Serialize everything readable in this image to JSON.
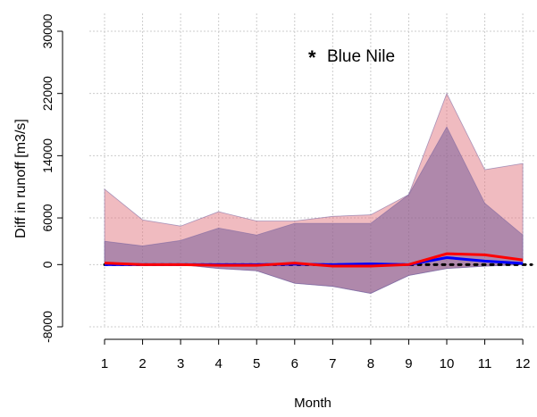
{
  "chart_data": {
    "type": "band-line",
    "xlabel": "Month",
    "ylabel": "Diff in runoff [m3/s]",
    "annotation": {
      "marker": "*",
      "text": "Blue Nile",
      "marker_color": "#e8202a"
    },
    "x": [
      1,
      2,
      3,
      4,
      5,
      6,
      7,
      8,
      9,
      10,
      11,
      12
    ],
    "xlim": [
      0.6,
      12.35
    ],
    "xticks": [
      1,
      2,
      3,
      4,
      5,
      6,
      7,
      8,
      9,
      10,
      11,
      12
    ],
    "ylim": [
      -8000,
      30000
    ],
    "yticks": [
      -8000,
      0,
      6000,
      14000,
      22000,
      30000
    ],
    "grid": true,
    "reference_line": 0,
    "bands": [
      {
        "color": "rgba(225,120,130,0.5)",
        "lower": [
          0,
          0,
          0,
          -500,
          -800,
          -2400,
          -2800,
          -3700,
          -1400,
          -500,
          -200,
          0
        ],
        "upper": [
          9700,
          5750,
          4950,
          6800,
          5600,
          5600,
          6200,
          6400,
          9000,
          22000,
          12200,
          13000
        ]
      },
      {
        "color": "rgba(110,85,150,0.5)",
        "lower": [
          0,
          0,
          0,
          -500,
          -800,
          -2400,
          -2800,
          -3700,
          -1400,
          -500,
          -200,
          0
        ],
        "upper": [
          3000,
          2400,
          3100,
          4700,
          3800,
          5300,
          5300,
          5300,
          9000,
          17700,
          7900,
          3800
        ]
      }
    ],
    "series": [
      {
        "color": "#0000ff",
        "values": [
          0,
          0,
          0,
          0,
          0,
          50,
          0,
          100,
          0,
          900,
          450,
          150
        ]
      },
      {
        "color": "#ff0000",
        "values": [
          200,
          0,
          0,
          -100,
          -100,
          200,
          -200,
          -200,
          0,
          1400,
          1250,
          600
        ]
      }
    ]
  }
}
